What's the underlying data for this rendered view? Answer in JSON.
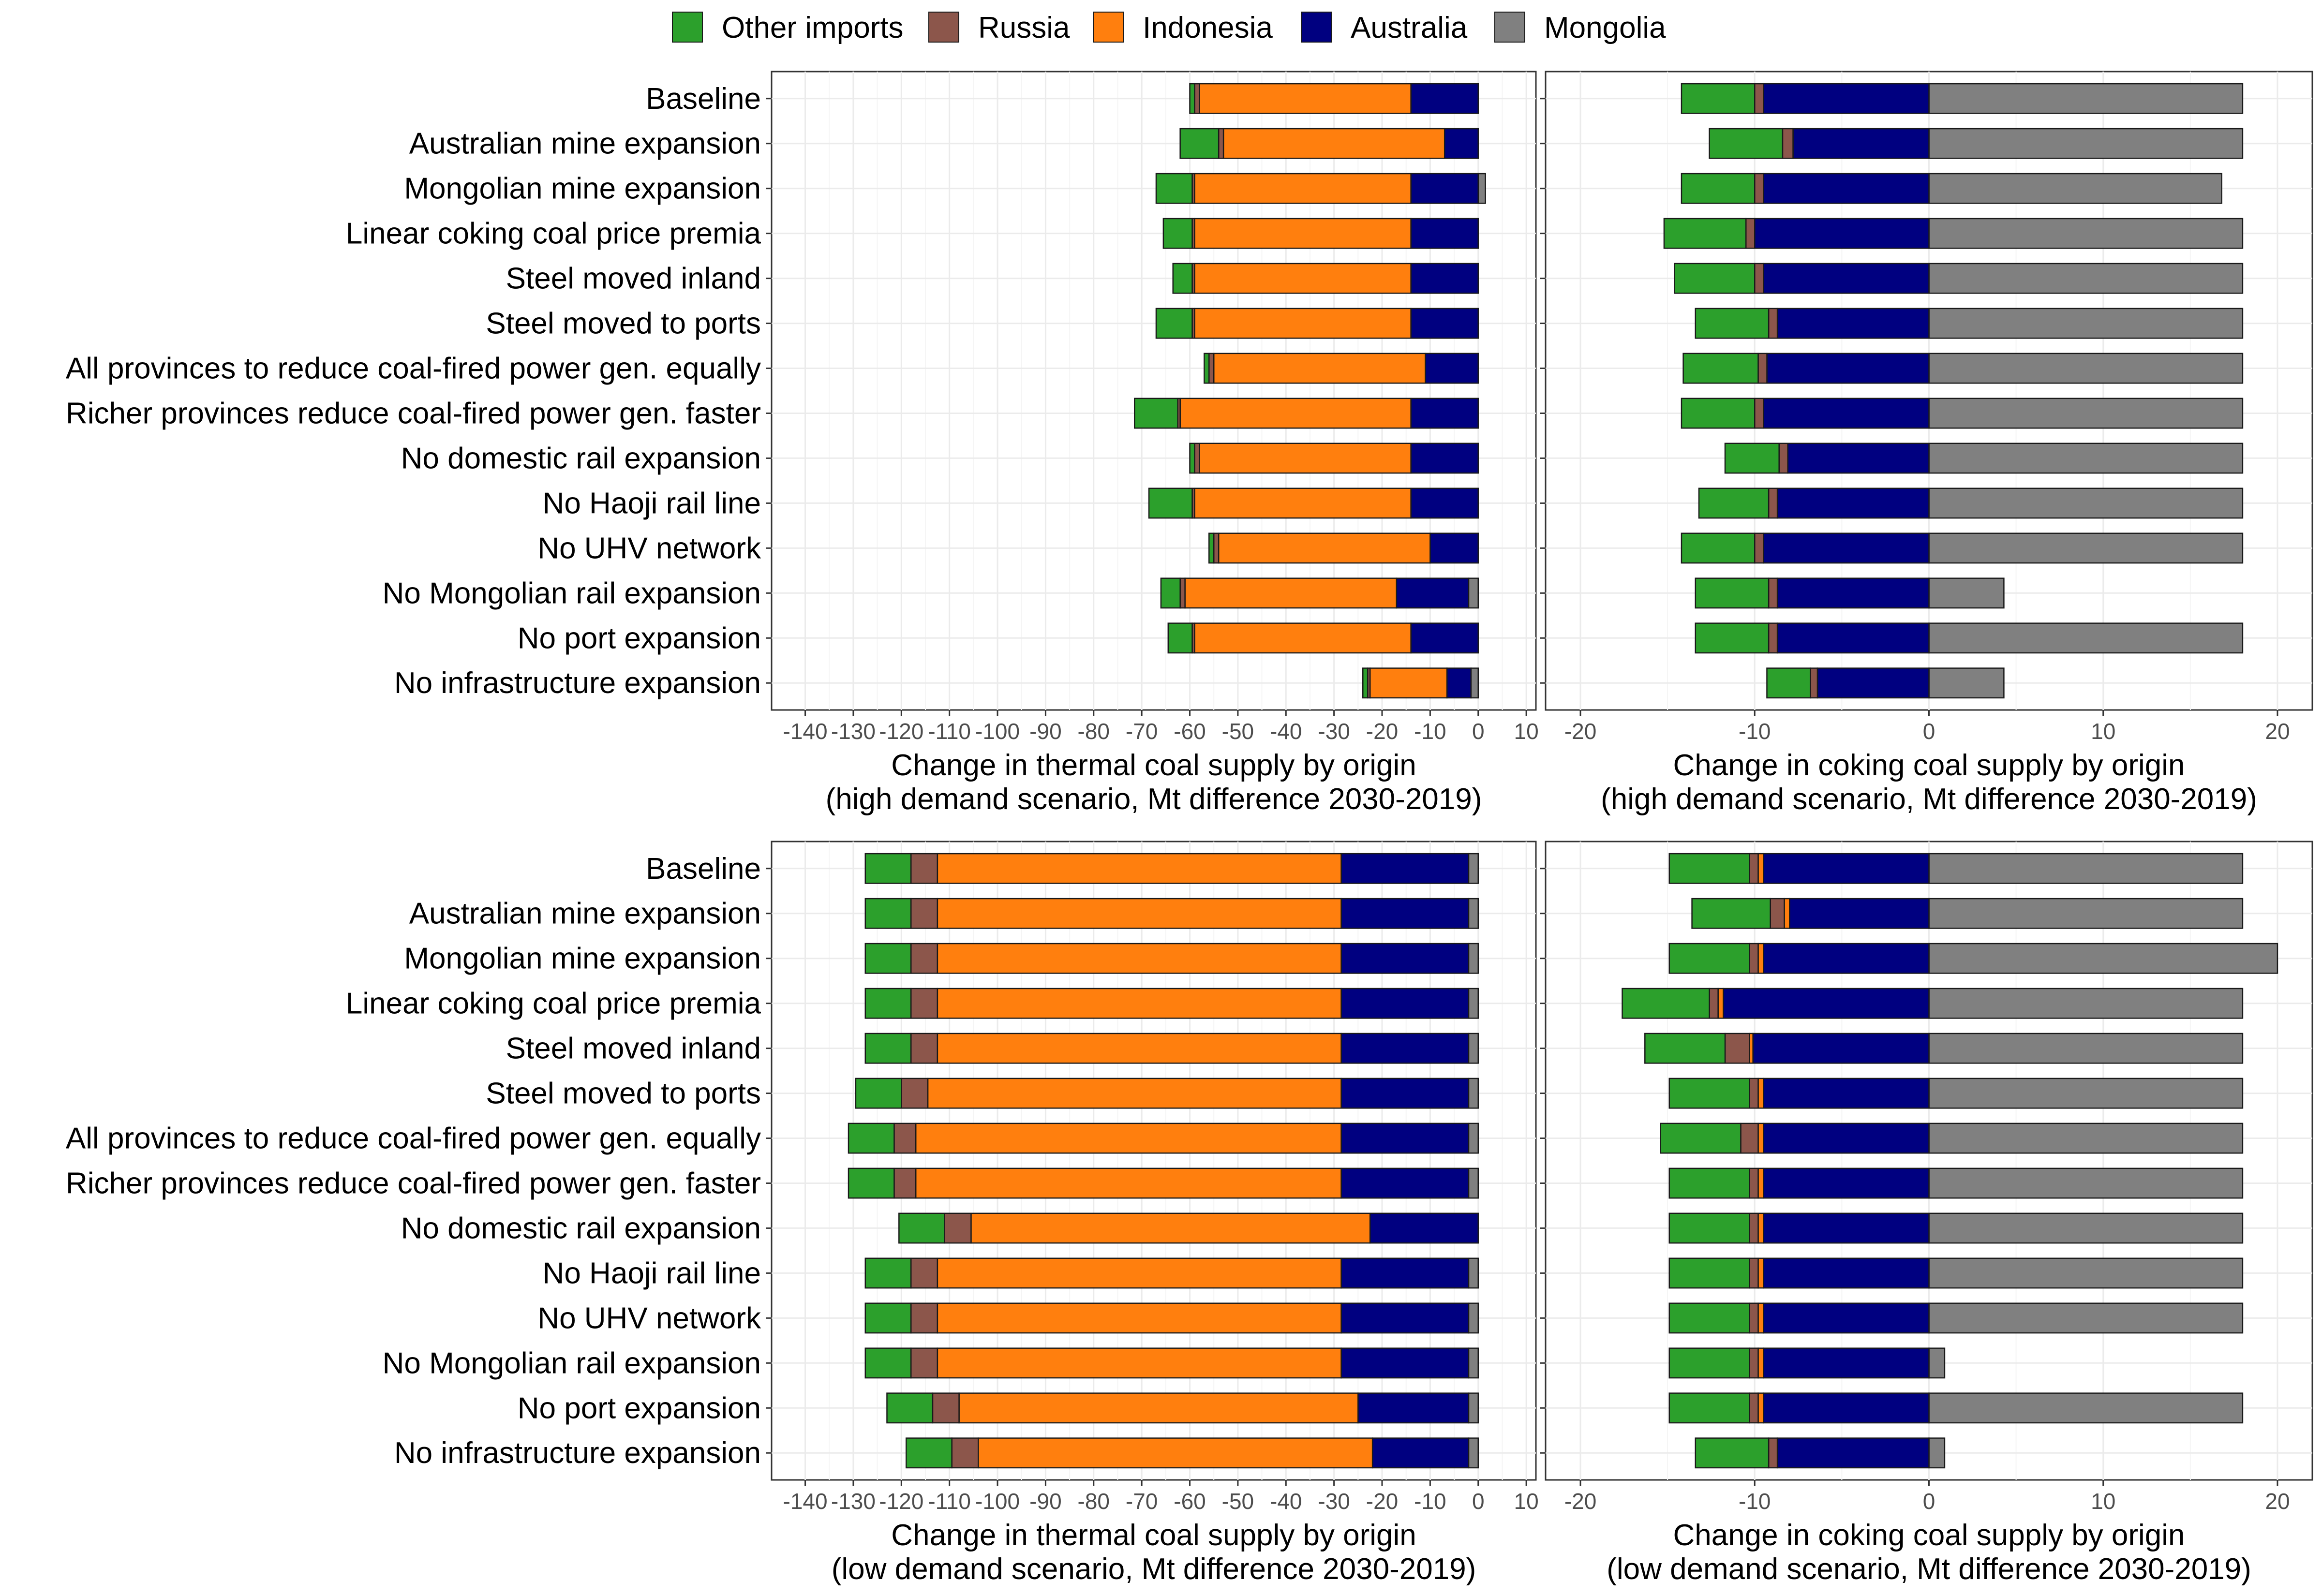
{
  "legend": {
    "items": [
      {
        "key": "other",
        "label": "Other imports",
        "color": "#2ca02c"
      },
      {
        "key": "russia",
        "label": "Russia",
        "color": "#8c564b"
      },
      {
        "key": "indonesia",
        "label": "Indonesia",
        "color": "#ff7f0e"
      },
      {
        "key": "australia",
        "label": "Australia",
        "color": "#000080"
      },
      {
        "key": "mongolia",
        "label": "Mongolia",
        "color": "#808080"
      }
    ]
  },
  "chart_data": [
    {
      "type": "bar",
      "orientation": "horizontal",
      "stacked": true,
      "panel": "top-left",
      "xlabel": "Change in thermal coal supply by origin",
      "xlabel2": "(high demand scenario, Mt difference 2030-2019)",
      "xlim": [
        -147,
        12
      ],
      "xticks": [
        -140,
        -130,
        -120,
        -110,
        -100,
        -90,
        -80,
        -70,
        -60,
        -50,
        -40,
        -30,
        -20,
        -10,
        0,
        10
      ],
      "categories": [
        "Baseline",
        "Australian mine expansion",
        "Mongolian mine expansion",
        "Linear coking coal price premia",
        "Steel moved inland",
        "Steel moved to ports",
        "All provinces to reduce coal-fired power gen. equally",
        "Richer provinces reduce coal-fired power gen. faster",
        "No domestic rail expansion",
        "No Haoji rail line",
        "No UHV network",
        "No Mongolian rail expansion",
        "No port expansion",
        "No infrastructure expansion"
      ],
      "series": [
        {
          "name": "Australia",
          "values": [
            -14,
            -7,
            -14,
            -14,
            -14,
            -14,
            -11,
            -14,
            -14,
            -14,
            -10,
            -15,
            -14,
            -5
          ]
        },
        {
          "name": "Indonesia",
          "values": [
            -44,
            -46,
            -45,
            -45,
            -45,
            -45,
            -44,
            -48,
            -44,
            -45,
            -44,
            -44,
            -45,
            -16
          ]
        },
        {
          "name": "Russia",
          "values": [
            -1,
            -1,
            -0.5,
            -0.5,
            -0.5,
            -0.5,
            -1,
            -0.5,
            -1,
            -0.5,
            -1,
            -1,
            -0.5,
            -0.5
          ]
        },
        {
          "name": "Other imports",
          "values": [
            -1,
            -8,
            -7.5,
            -6,
            -4,
            -7.5,
            -1,
            -9,
            -1,
            -9,
            -1,
            -4,
            -5,
            -1
          ]
        },
        {
          "name": "Mongolia",
          "values": [
            0,
            0,
            1.5,
            0,
            0,
            0,
            0,
            0,
            0,
            0,
            0,
            -2,
            0,
            -1.5
          ]
        }
      ]
    },
    {
      "type": "bar",
      "orientation": "horizontal",
      "stacked": true,
      "panel": "top-right",
      "xlabel": "Change in coking coal supply by origin",
      "xlabel2": "(high demand scenario, Mt difference 2030-2019)",
      "xlim": [
        -22,
        22
      ],
      "xticks": [
        -20,
        -10,
        0,
        10,
        20
      ],
      "categories": [
        "Baseline",
        "Australian mine expansion",
        "Mongolian mine expansion",
        "Linear coking coal price premia",
        "Steel moved inland",
        "Steel moved to ports",
        "All provinces to reduce coal-fired power gen. equally",
        "Richer provinces reduce coal-fired power gen. faster",
        "No domestic rail expansion",
        "No Haoji rail line",
        "No UHV network",
        "No Mongolian rail expansion",
        "No port expansion",
        "No infrastructure expansion"
      ],
      "series": [
        {
          "name": "Australia",
          "values": [
            -9.5,
            -7.8,
            -9.5,
            -10,
            -9.5,
            -8.7,
            -9.3,
            -9.5,
            -8.1,
            -8.7,
            -9.5,
            -8.7,
            -8.7,
            -6.4
          ]
        },
        {
          "name": "Russia",
          "values": [
            -0.5,
            -0.6,
            -0.5,
            -0.5,
            -0.5,
            -0.5,
            -0.5,
            -0.5,
            -0.5,
            -0.5,
            -0.5,
            -0.5,
            -0.5,
            -0.4
          ]
        },
        {
          "name": "Other imports",
          "values": [
            -4.2,
            -4.2,
            -4.2,
            -4.7,
            -4.6,
            -4.2,
            -4.3,
            -4.2,
            -3.1,
            -4,
            -4.2,
            -4.2,
            -4.2,
            -2.5
          ]
        },
        {
          "name": "Mongolia",
          "values": [
            18,
            18,
            16.8,
            18,
            18,
            18,
            18,
            18,
            18,
            18,
            18,
            4.3,
            18,
            4.3
          ]
        }
      ]
    },
    {
      "type": "bar",
      "orientation": "horizontal",
      "stacked": true,
      "panel": "bottom-left",
      "xlabel": "Change in thermal coal supply by origin",
      "xlabel2": "(low demand scenario, Mt difference 2030-2019)",
      "xlim": [
        -147,
        12
      ],
      "xticks": [
        -140,
        -130,
        -120,
        -110,
        -100,
        -90,
        -80,
        -70,
        -60,
        -50,
        -40,
        -30,
        -20,
        -10,
        0,
        10
      ],
      "categories": [
        "Baseline",
        "Australian mine expansion",
        "Mongolian mine expansion",
        "Linear coking coal price premia",
        "Steel moved inland",
        "Steel moved to ports",
        "All provinces to reduce coal-fired power gen. equally",
        "Richer provinces reduce coal-fired power gen. faster",
        "No domestic rail expansion",
        "No Haoji rail line",
        "No UHV network",
        "No Mongolian rail expansion",
        "No port expansion",
        "No infrastructure expansion"
      ],
      "series": [
        {
          "name": "Australia",
          "values": [
            -26.5,
            -26.5,
            -26.5,
            -26.5,
            -26.5,
            -26.5,
            -26.5,
            -26.5,
            -22.5,
            -26.5,
            -26.5,
            -26.5,
            -23,
            -20
          ]
        },
        {
          "name": "Indonesia",
          "values": [
            -84,
            -84,
            -84,
            -84,
            -84,
            -86,
            -88.5,
            -88.5,
            -83,
            -84,
            -84,
            -84,
            -83,
            -82
          ]
        },
        {
          "name": "Russia",
          "values": [
            -5.5,
            -5.5,
            -5.5,
            -5.5,
            -5.5,
            -5.5,
            -4.5,
            -4.5,
            -5.5,
            -5.5,
            -5.5,
            -5.5,
            -5.5,
            -5.5
          ]
        },
        {
          "name": "Other imports",
          "values": [
            -9.5,
            -9.5,
            -9.5,
            -9.5,
            -9.5,
            -9.5,
            -9.5,
            -9.5,
            -9.5,
            -9.5,
            -9.5,
            -9.5,
            -9.5,
            -9.5
          ]
        },
        {
          "name": "Mongolia",
          "values": [
            -2,
            -2,
            -2,
            -2,
            -2,
            -2,
            -2,
            -2,
            0,
            -2,
            -2,
            -2,
            -2,
            -2
          ]
        }
      ]
    },
    {
      "type": "bar",
      "orientation": "horizontal",
      "stacked": true,
      "panel": "bottom-right",
      "xlabel": "Change in coking coal supply by origin",
      "xlabel2": "(low demand scenario, Mt difference 2030-2019)",
      "xlim": [
        -22,
        22
      ],
      "xticks": [
        -20,
        -10,
        0,
        10,
        20
      ],
      "categories": [
        "Baseline",
        "Australian mine expansion",
        "Mongolian mine expansion",
        "Linear coking coal price premia",
        "Steel moved inland",
        "Steel moved to ports",
        "All provinces to reduce coal-fired power gen. equally",
        "Richer provinces reduce coal-fired power gen. faster",
        "No domestic rail expansion",
        "No Haoji rail line",
        "No UHV network",
        "No Mongolian rail expansion",
        "No port expansion",
        "No infrastructure expansion"
      ],
      "series": [
        {
          "name": "Australia",
          "values": [
            -9.5,
            -8,
            -9.5,
            -11.8,
            -10.1,
            -9.5,
            -9.5,
            -9.5,
            -9.5,
            -9.5,
            -9.5,
            -9.5,
            -9.5,
            -8.7
          ]
        },
        {
          "name": "Indonesia",
          "values": [
            -0.3,
            -0.3,
            -0.3,
            -0.3,
            -0.2,
            -0.3,
            -0.3,
            -0.3,
            -0.3,
            -0.3,
            -0.3,
            -0.3,
            -0.3,
            0
          ]
        },
        {
          "name": "Russia",
          "values": [
            -0.5,
            -0.8,
            -0.5,
            -0.5,
            -1.4,
            -0.5,
            -1,
            -0.5,
            -0.5,
            -0.5,
            -0.5,
            -0.5,
            -0.5,
            -0.5
          ]
        },
        {
          "name": "Other imports",
          "values": [
            -4.6,
            -4.5,
            -4.6,
            -5,
            -4.6,
            -4.6,
            -4.6,
            -4.6,
            -4.6,
            -4.6,
            -4.6,
            -4.6,
            -4.6,
            -4.2
          ]
        },
        {
          "name": "Mongolia",
          "values": [
            18,
            18,
            20,
            18,
            18,
            18,
            18,
            18,
            18,
            18,
            18,
            0.9,
            18,
            0.9
          ]
        }
      ]
    }
  ]
}
